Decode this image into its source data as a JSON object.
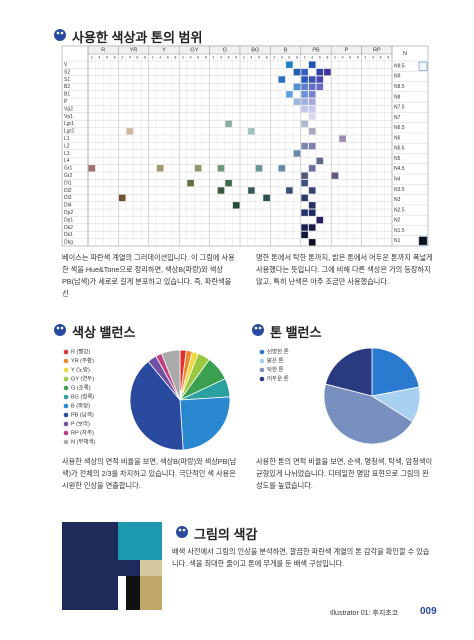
{
  "color_range": {
    "title": "사용한 색상과 톤의 범위",
    "hues": [
      {
        "name": "R",
        "steps": [
          2,
          4,
          6,
          8
        ]
      },
      {
        "name": "YR",
        "steps": [
          2,
          4,
          6,
          8
        ]
      },
      {
        "name": "Y",
        "steps": [
          2,
          4,
          6,
          8
        ]
      },
      {
        "name": "GY",
        "steps": [
          2,
          4,
          6,
          8
        ]
      },
      {
        "name": "G",
        "steps": [
          2,
          4,
          6,
          8
        ]
      },
      {
        "name": "BG",
        "steps": [
          2,
          4,
          6,
          8
        ]
      },
      {
        "name": "B",
        "steps": [
          2,
          4,
          6,
          8
        ]
      },
      {
        "name": "PB",
        "steps": [
          2,
          4,
          6,
          8
        ]
      },
      {
        "name": "P",
        "steps": [
          2,
          4,
          6,
          8
        ]
      },
      {
        "name": "RP",
        "steps": [
          2,
          4,
          6,
          8
        ]
      }
    ],
    "neutral_header": "N",
    "rows": [
      "V",
      "S2",
      "S1",
      "B2",
      "B1",
      "P",
      "Vp2",
      "Vp1",
      "Lgr1",
      "Lgr2",
      "L1",
      "L2",
      "L3",
      "L4",
      "Gr1",
      "Gr2",
      "Dl1",
      "Dl2",
      "Dl3",
      "Dl4",
      "Dp2",
      "Dp1",
      "Dk2",
      "Dk1",
      "Dkg"
    ],
    "neutral": [
      {
        "label": "N9.5",
        "color": "#f4f6fb"
      },
      {
        "label": "N9",
        "color": null
      },
      {
        "label": "N8.5",
        "color": null
      },
      {
        "label": "N8",
        "color": null
      },
      {
        "label": "N7.5",
        "color": null
      },
      {
        "label": "N7",
        "color": null
      },
      {
        "label": "N6.5",
        "color": null
      },
      {
        "label": "N6",
        "color": null
      },
      {
        "label": "N5.5",
        "color": null
      },
      {
        "label": "N5",
        "color": null
      },
      {
        "label": "N4.5",
        "color": null
      },
      {
        "label": "N4",
        "color": null
      },
      {
        "label": "N3.5",
        "color": null
      },
      {
        "label": "N3",
        "color": null
      },
      {
        "label": "N2.5",
        "color": null
      },
      {
        "label": "N2",
        "color": null
      },
      {
        "label": "N1.5",
        "color": null
      },
      {
        "label": "N1",
        "color": "#111111"
      }
    ],
    "cells": [
      {
        "row": "V",
        "hue": "B",
        "step": 6,
        "color": "#1a80c8"
      },
      {
        "row": "V",
        "hue": "PB",
        "step": 4,
        "color": "#2050b0"
      },
      {
        "row": "S2",
        "hue": "B",
        "step": 8,
        "color": "#2060b0"
      },
      {
        "row": "S2",
        "hue": "PB",
        "step": 2,
        "color": "#3060c0"
      },
      {
        "row": "S2",
        "hue": "PB",
        "step": 6,
        "color": "#3040a0"
      },
      {
        "row": "S2",
        "hue": "PB",
        "step": 8,
        "color": "#4030a0"
      },
      {
        "row": "S1",
        "hue": "B",
        "step": 4,
        "color": "#2a70c0"
      },
      {
        "row": "S1",
        "hue": "PB",
        "step": 2,
        "color": "#2a58b8"
      },
      {
        "row": "S1",
        "hue": "PB",
        "step": 4,
        "color": "#3a50b0"
      },
      {
        "row": "S1",
        "hue": "PB",
        "step": 6,
        "color": "#4a48b0"
      },
      {
        "row": "B2",
        "hue": "B",
        "step": 8,
        "color": "#5090d0"
      },
      {
        "row": "B2",
        "hue": "PB",
        "step": 2,
        "color": "#5a80d0"
      },
      {
        "row": "B2",
        "hue": "PB",
        "step": 4,
        "color": "#6070c8"
      },
      {
        "row": "B2",
        "hue": "PB",
        "step": 6,
        "color": "#7068c0"
      },
      {
        "row": "B1",
        "hue": "B",
        "step": 6,
        "color": "#60a0e0"
      },
      {
        "row": "B1",
        "hue": "PB",
        "step": 2,
        "color": "#6a90d8"
      },
      {
        "row": "B1",
        "hue": "PB",
        "step": 4,
        "color": "#7a80d0"
      },
      {
        "row": "P",
        "hue": "B",
        "step": 8,
        "color": "#9ab8e0"
      },
      {
        "row": "P",
        "hue": "PB",
        "step": 2,
        "color": "#a0b0e0"
      },
      {
        "row": "P",
        "hue": "PB",
        "step": 4,
        "color": "#a8a8e0"
      },
      {
        "row": "Vp2",
        "hue": "PB",
        "step": 2,
        "color": "#c0c8e8"
      },
      {
        "row": "Vp2",
        "hue": "PB",
        "step": 4,
        "color": "#c8c8f0"
      },
      {
        "row": "Vp1",
        "hue": "PB",
        "step": 4,
        "color": "#d8d8f0"
      },
      {
        "row": "Lgr1",
        "hue": "G",
        "step": 6,
        "color": "#8ab0a0"
      },
      {
        "row": "Lgr1",
        "hue": "PB",
        "step": 2,
        "color": "#b0b8d0"
      },
      {
        "row": "Lgr2",
        "hue": "YR",
        "step": 4,
        "color": "#d0b8a0"
      },
      {
        "row": "Lgr2",
        "hue": "BG",
        "step": 4,
        "color": "#a0c0c0"
      },
      {
        "row": "Lgr2",
        "hue": "PB",
        "step": 4,
        "color": "#a8a8c0"
      },
      {
        "row": "L1",
        "hue": "P",
        "step": 4,
        "color": "#9a8ab0"
      },
      {
        "row": "L2",
        "hue": "PB",
        "step": 2,
        "color": "#7a88b0"
      },
      {
        "row": "L2",
        "hue": "PB",
        "step": 4,
        "color": "#8080b0"
      },
      {
        "row": "L3",
        "hue": "B",
        "step": 8,
        "color": "#6a88a8"
      },
      {
        "row": "L4",
        "hue": "PB",
        "step": 6,
        "color": "#606890"
      },
      {
        "row": "Gr1",
        "hue": "R",
        "step": 2,
        "color": "#a07070"
      },
      {
        "row": "Gr1",
        "hue": "Y",
        "step": 4,
        "color": "#a09870"
      },
      {
        "row": "Gr1",
        "hue": "GY",
        "step": 6,
        "color": "#8a9870"
      },
      {
        "row": "Gr1",
        "hue": "G",
        "step": 4,
        "color": "#70987a"
      },
      {
        "row": "Gr1",
        "hue": "BG",
        "step": 6,
        "color": "#6a9898"
      },
      {
        "row": "Gr1",
        "hue": "B",
        "step": 4,
        "color": "#6a88a8"
      },
      {
        "row": "Gr1",
        "hue": "PB",
        "step": 4,
        "color": "#6a70a0"
      },
      {
        "row": "Gr2",
        "hue": "PB",
        "step": 2,
        "color": "#505880"
      },
      {
        "row": "Gr2",
        "hue": "P",
        "step": 2,
        "color": "#685880"
      },
      {
        "row": "Dl1",
        "hue": "GY",
        "step": 4,
        "color": "#607040"
      },
      {
        "row": "Dl1",
        "hue": "G",
        "step": 6,
        "color": "#406a50"
      },
      {
        "row": "Dl1",
        "hue": "PB",
        "step": 2,
        "color": "#3a5080"
      },
      {
        "row": "Dl2",
        "hue": "G",
        "step": 4,
        "color": "#3a5a40"
      },
      {
        "row": "Dl2",
        "hue": "BG",
        "step": 4,
        "color": "#3a5a5a"
      },
      {
        "row": "Dl2",
        "hue": "B",
        "step": 6,
        "color": "#3a5070"
      },
      {
        "row": "Dl2",
        "hue": "PB",
        "step": 4,
        "color": "#3a4070"
      },
      {
        "row": "Dl3",
        "hue": "YR",
        "step": 2,
        "color": "#705030"
      },
      {
        "row": "Dl3",
        "hue": "BG",
        "step": 8,
        "color": "#2a5050"
      },
      {
        "row": "Dl3",
        "hue": "PB",
        "step": 2,
        "color": "#2a3a68"
      },
      {
        "row": "Dl4",
        "hue": "G",
        "step": 8,
        "color": "#2a4a38"
      },
      {
        "row": "Dl4",
        "hue": "PB",
        "step": 4,
        "color": "#2a3060"
      },
      {
        "row": "Dp2",
        "hue": "PB",
        "step": 2,
        "color": "#203070"
      },
      {
        "row": "Dp2",
        "hue": "PB",
        "step": 4,
        "color": "#202868"
      },
      {
        "row": "Dp1",
        "hue": "PB",
        "step": 6,
        "color": "#282060"
      },
      {
        "row": "Dk2",
        "hue": "PB",
        "step": 2,
        "color": "#1a2050"
      },
      {
        "row": "Dk2",
        "hue": "PB",
        "step": 4,
        "color": "#1a1a48"
      },
      {
        "row": "Dk1",
        "hue": "PB",
        "step": 2,
        "color": "#101838"
      },
      {
        "row": "Dkg",
        "hue": "PB",
        "step": 4,
        "color": "#101028"
      }
    ],
    "text_left": "베이스는 파란색 계열의 그러데이션입니다. 이 그림에 사용한 색을 Hue&Tone으로 정리하면, 색상B(파랑)와 색상PB(남색)가 세로로 길게 분포하고 있습니다. 즉, 파란색을 선",
    "text_right": "명한 톤에서 탁한 톤까지, 밝은 톤에서 어두운 톤까지 폭넓게 사용했다는 뜻입니다. 그에 비해 다른 색상은 거의 등장하지 않고, 특히 난색은 아주 조금만 사용했습니다."
  },
  "hue_balance": {
    "title": "색상 밸런스",
    "chart": {
      "type": "pie",
      "categories": [
        "R (빨강)",
        "YR (주황)",
        "Y (노랑)",
        "GY (연두)",
        "G (초록)",
        "BG (청록)",
        "B (파랑)",
        "PB (남색)",
        "P (보라)",
        "RP (자주)",
        "N (무채색)"
      ],
      "values": [
        2,
        2,
        2,
        4,
        8,
        6,
        25,
        40,
        3,
        2,
        6
      ],
      "colors": [
        "#e03030",
        "#f08a30",
        "#f0d840",
        "#9ac840",
        "#3aa050",
        "#2aa0a0",
        "#2a88d0",
        "#2a4aa0",
        "#7050a0",
        "#c04080",
        "#aaaaaa"
      ]
    },
    "text": "사용한 색상의 면적 비율을 보면, 색상B(파랑)와 색상PB(남색)가 전체의 2/3를 차지하고 있습니다. 극단적인 색 사용은 시원한 인상을 연출합니다."
  },
  "tone_balance": {
    "title": "톤 밸런스",
    "chart": {
      "type": "pie",
      "categories": [
        "선명한 톤",
        "밝은 톤",
        "탁한 톤",
        "어두운 톤"
      ],
      "values": [
        22,
        12,
        45,
        21
      ],
      "colors": [
        "#2a7ad0",
        "#a8d0f0",
        "#7890c0",
        "#2a3a80"
      ]
    },
    "text": "사용한 톤의 면적 비율을 보면, 순색, 명청색, 탁색, 암청색이 균형있게 나뉘었습니다. 디테일한 명암 표현으로 그림의 완성도를 높였습니다."
  },
  "color_feel": {
    "title": "그림의 색감",
    "text": "배색 사전에서 그림의 인상을 분석하면, 깔끔한 파란색 계열의 톤 감각을 확인할 수 있습니다. 색을 최대한 줄이고 톤에 무게를 둔 배색 구성입니다."
  },
  "footer": {
    "book": "Illustrator 01: 후지초코",
    "page": "009"
  }
}
